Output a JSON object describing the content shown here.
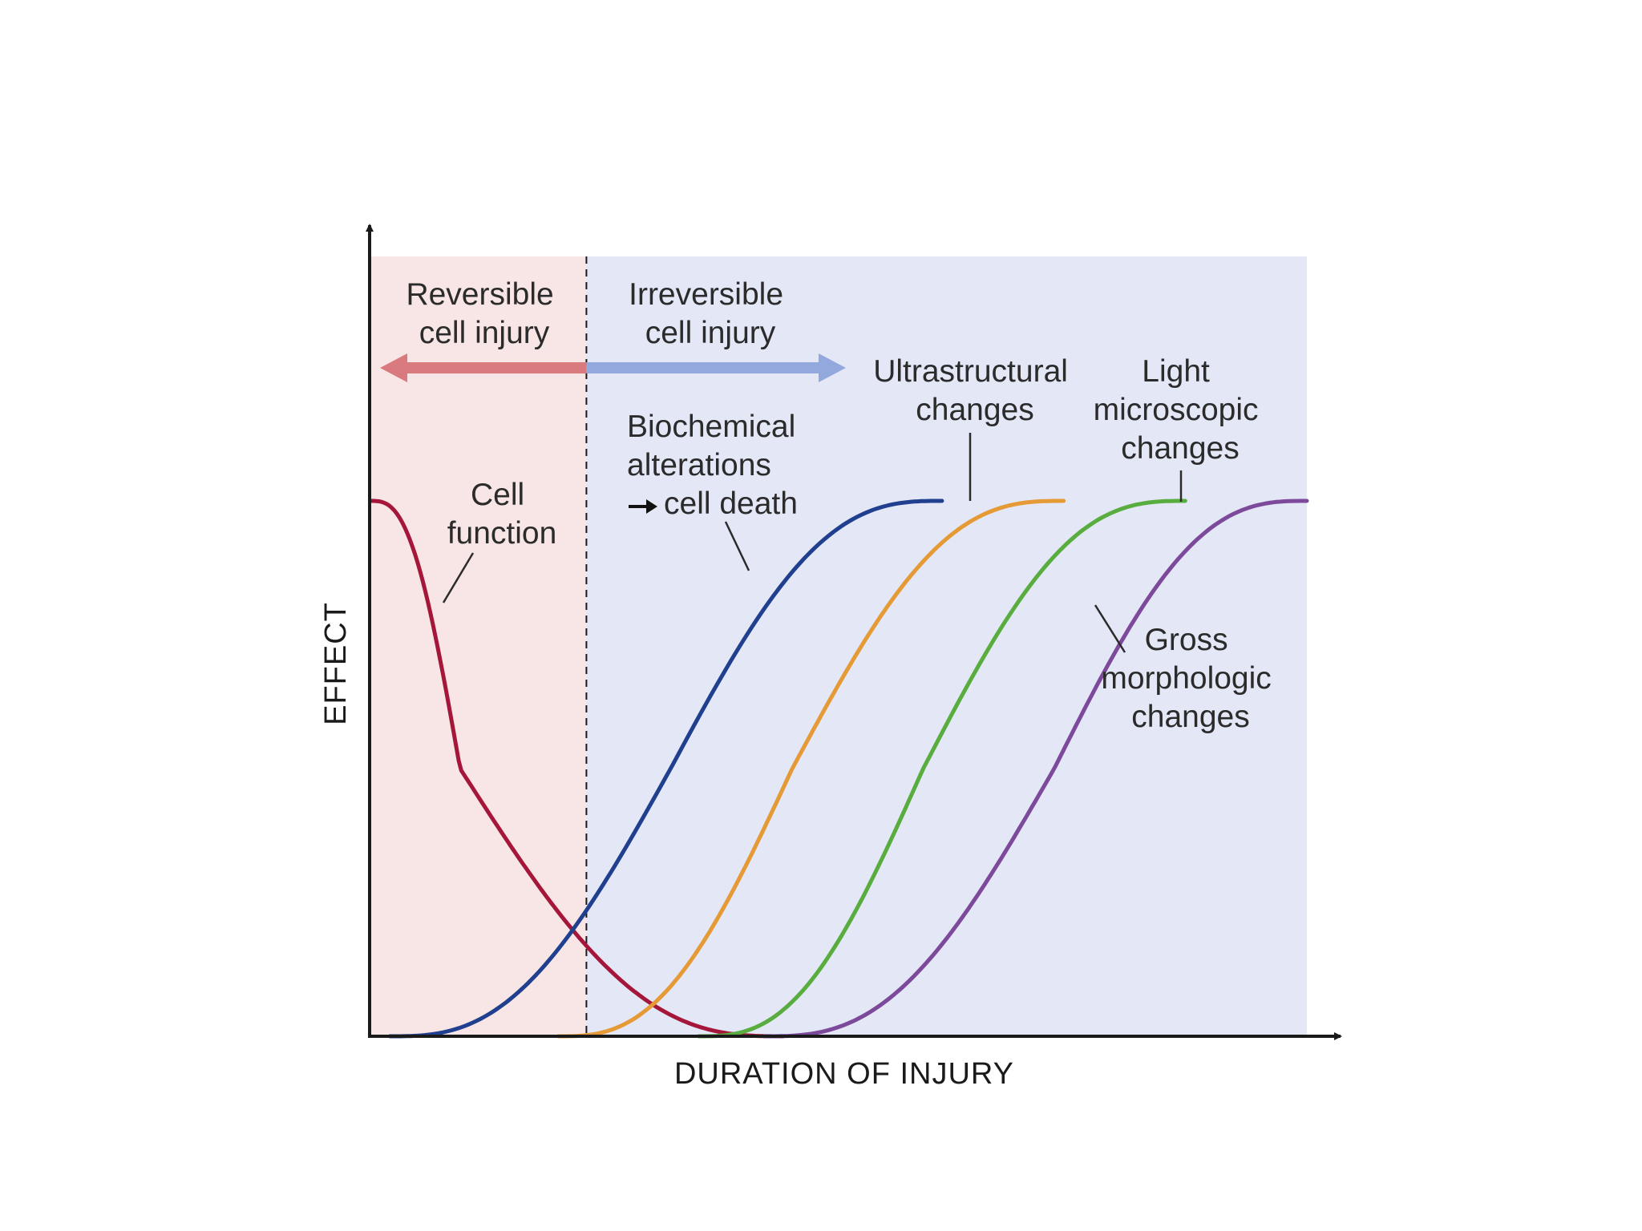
{
  "chart_data": {
    "type": "line",
    "title": "",
    "xlabel": "DURATION OF INJURY",
    "ylabel": "EFFECT",
    "xlim": [
      0,
      100
    ],
    "ylim": [
      0,
      1
    ],
    "grid": false,
    "x_ticks": "none",
    "y_ticks": "none",
    "regions": [
      {
        "name": "Reversible cell injury",
        "lines": [
          "Reversible",
          "cell injury"
        ],
        "x_range": [
          0,
          23
        ],
        "color": "#f8e6e6",
        "arrow_color": "#d97a7f"
      },
      {
        "name": "Irreversible cell injury",
        "lines": [
          "Irreversible",
          "cell injury"
        ],
        "x_range": [
          23,
          100
        ],
        "color": "#e3e7f6",
        "arrow_color": "#93a9de"
      }
    ],
    "threshold_x": 23,
    "series": [
      {
        "name": "Cell function",
        "lines": [
          "Cell",
          "function"
        ],
        "color": "#a5173a",
        "shape": "decreasing-sigmoid",
        "x_start": 0,
        "x_end": 44,
        "midpoint": 9.5
      },
      {
        "name": "Biochemical alterations → cell death",
        "lines": [
          "Biochemical",
          "alterations",
          "cell death"
        ],
        "color": "#203f8f",
        "shape": "increasing-sigmoid",
        "x_start": 2,
        "x_end": 61,
        "midpoint": 32
      },
      {
        "name": "Ultrastructural changes",
        "lines": [
          "Ultrastructural",
          "changes"
        ],
        "color": "#e59a36",
        "shape": "increasing-sigmoid",
        "x_start": 20,
        "x_end": 74,
        "midpoint": 45
      },
      {
        "name": "Light microscopic changes",
        "lines": [
          "Light",
          "microscopic",
          "changes"
        ],
        "color": "#59ad3f",
        "shape": "increasing-sigmoid",
        "x_start": 35,
        "x_end": 87,
        "midpoint": 59
      },
      {
        "name": "Gross morphologic changes",
        "lines": [
          "Gross",
          "morphologic",
          "changes"
        ],
        "color": "#7d4a9b",
        "shape": "increasing-sigmoid",
        "x_start": 42,
        "x_end": 100,
        "midpoint": 73
      }
    ]
  },
  "colors": {
    "axis": "#1a1a1a",
    "text": "#2b2b2b"
  }
}
